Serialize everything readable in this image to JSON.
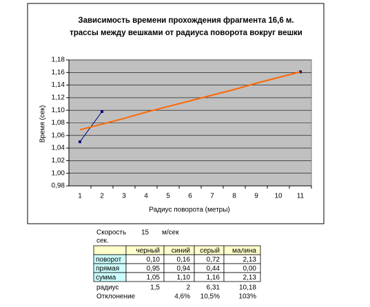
{
  "chart_data": {
    "type": "line",
    "title": [
      "Зависимость времени прохождения фрагмента 16,6 м.",
      "трассы между вешками от радиуса поворота вокруг вешки"
    ],
    "y_label": "Время (сек)",
    "x_label": "Радиус поворота (метры)",
    "categories": [
      "1",
      "2",
      "3",
      "4",
      "5",
      "6",
      "7",
      "8",
      "9",
      "10",
      "11"
    ],
    "series": [
      {
        "color": "#000080",
        "markers": true,
        "values": [
          1.05,
          1.098,
          null,
          null,
          null,
          null,
          null,
          null,
          null,
          null,
          1.161
        ]
      },
      {
        "color": "#ff6600",
        "markers": false,
        "values": [
          1.069,
          1.078,
          1.087,
          1.097,
          1.106,
          1.115,
          1.124,
          1.133,
          1.143,
          1.152,
          1.161
        ]
      }
    ],
    "ylim": [
      0.98,
      1.18
    ],
    "yticks": [
      {
        "value": 0.98,
        "label": "0,98"
      },
      {
        "value": 1.0,
        "label": "1,00"
      },
      {
        "value": 1.02,
        "label": "1,02"
      },
      {
        "value": 1.04,
        "label": "1,04"
      },
      {
        "value": 1.06,
        "label": "1,06"
      },
      {
        "value": 1.08,
        "label": "1,08"
      },
      {
        "value": 1.1,
        "label": "1,10"
      },
      {
        "value": 1.12,
        "label": "1,12"
      },
      {
        "value": 1.14,
        "label": "1,14"
      },
      {
        "value": 1.16,
        "label": "1,16"
      },
      {
        "value": 1.18,
        "label": "1,18"
      }
    ],
    "grid": true
  },
  "sheet": {
    "speed": [
      "Скорость",
      "15",
      "м/сек",
      "сек."
    ],
    "table": {
      "header": [
        "черный",
        "синий",
        "серый",
        "малина"
      ],
      "rows": [
        [
          "поворот",
          "0,10",
          "0,16",
          "0,72",
          "2,13"
        ],
        [
          "прямая",
          "0,95",
          "0,94",
          "0,44",
          "0,00"
        ],
        [
          "сумма",
          "1,05",
          "1,10",
          "1,16",
          "2,13"
        ]
      ]
    },
    "radius": [
      "радиус",
      "1,5",
      "2",
      "6,31",
      "10,18"
    ],
    "deviation": [
      "Отклонение",
      "4,6%",
      "10,5%",
      "103%"
    ]
  }
}
